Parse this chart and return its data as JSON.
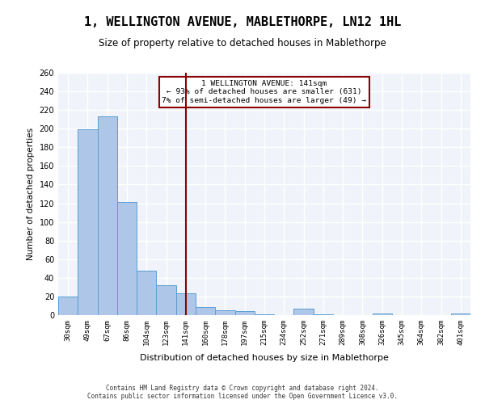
{
  "title": "1, WELLINGTON AVENUE, MABLETHORPE, LN12 1HL",
  "subtitle": "Size of property relative to detached houses in Mablethorpe",
  "xlabel": "Distribution of detached houses by size in Mablethorpe",
  "ylabel": "Number of detached properties",
  "categories": [
    "30sqm",
    "49sqm",
    "67sqm",
    "86sqm",
    "104sqm",
    "123sqm",
    "141sqm",
    "160sqm",
    "178sqm",
    "197sqm",
    "215sqm",
    "234sqm",
    "252sqm",
    "271sqm",
    "289sqm",
    "308sqm",
    "326sqm",
    "345sqm",
    "364sqm",
    "382sqm",
    "401sqm"
  ],
  "values": [
    20,
    199,
    213,
    121,
    48,
    32,
    23,
    9,
    5,
    4,
    1,
    0,
    7,
    1,
    0,
    0,
    2,
    0,
    0,
    0,
    2
  ],
  "bar_color": "#aec6e8",
  "bar_edge_color": "#5a9fd4",
  "highlight_index": 6,
  "highlight_line_color": "#8b0000",
  "annotation_text": "1 WELLINGTON AVENUE: 141sqm\n← 93% of detached houses are smaller (631)\n7% of semi-detached houses are larger (49) →",
  "annotation_box_color": "#ffffff",
  "annotation_box_edge_color": "#8b0000",
  "ylim": [
    0,
    260
  ],
  "yticks": [
    0,
    20,
    40,
    60,
    80,
    100,
    120,
    140,
    160,
    180,
    200,
    220,
    240,
    260
  ],
  "bg_color": "#f0f4fa",
  "grid_color": "#ffffff",
  "footer": "Contains HM Land Registry data © Crown copyright and database right 2024.\nContains public sector information licensed under the Open Government Licence v3.0."
}
